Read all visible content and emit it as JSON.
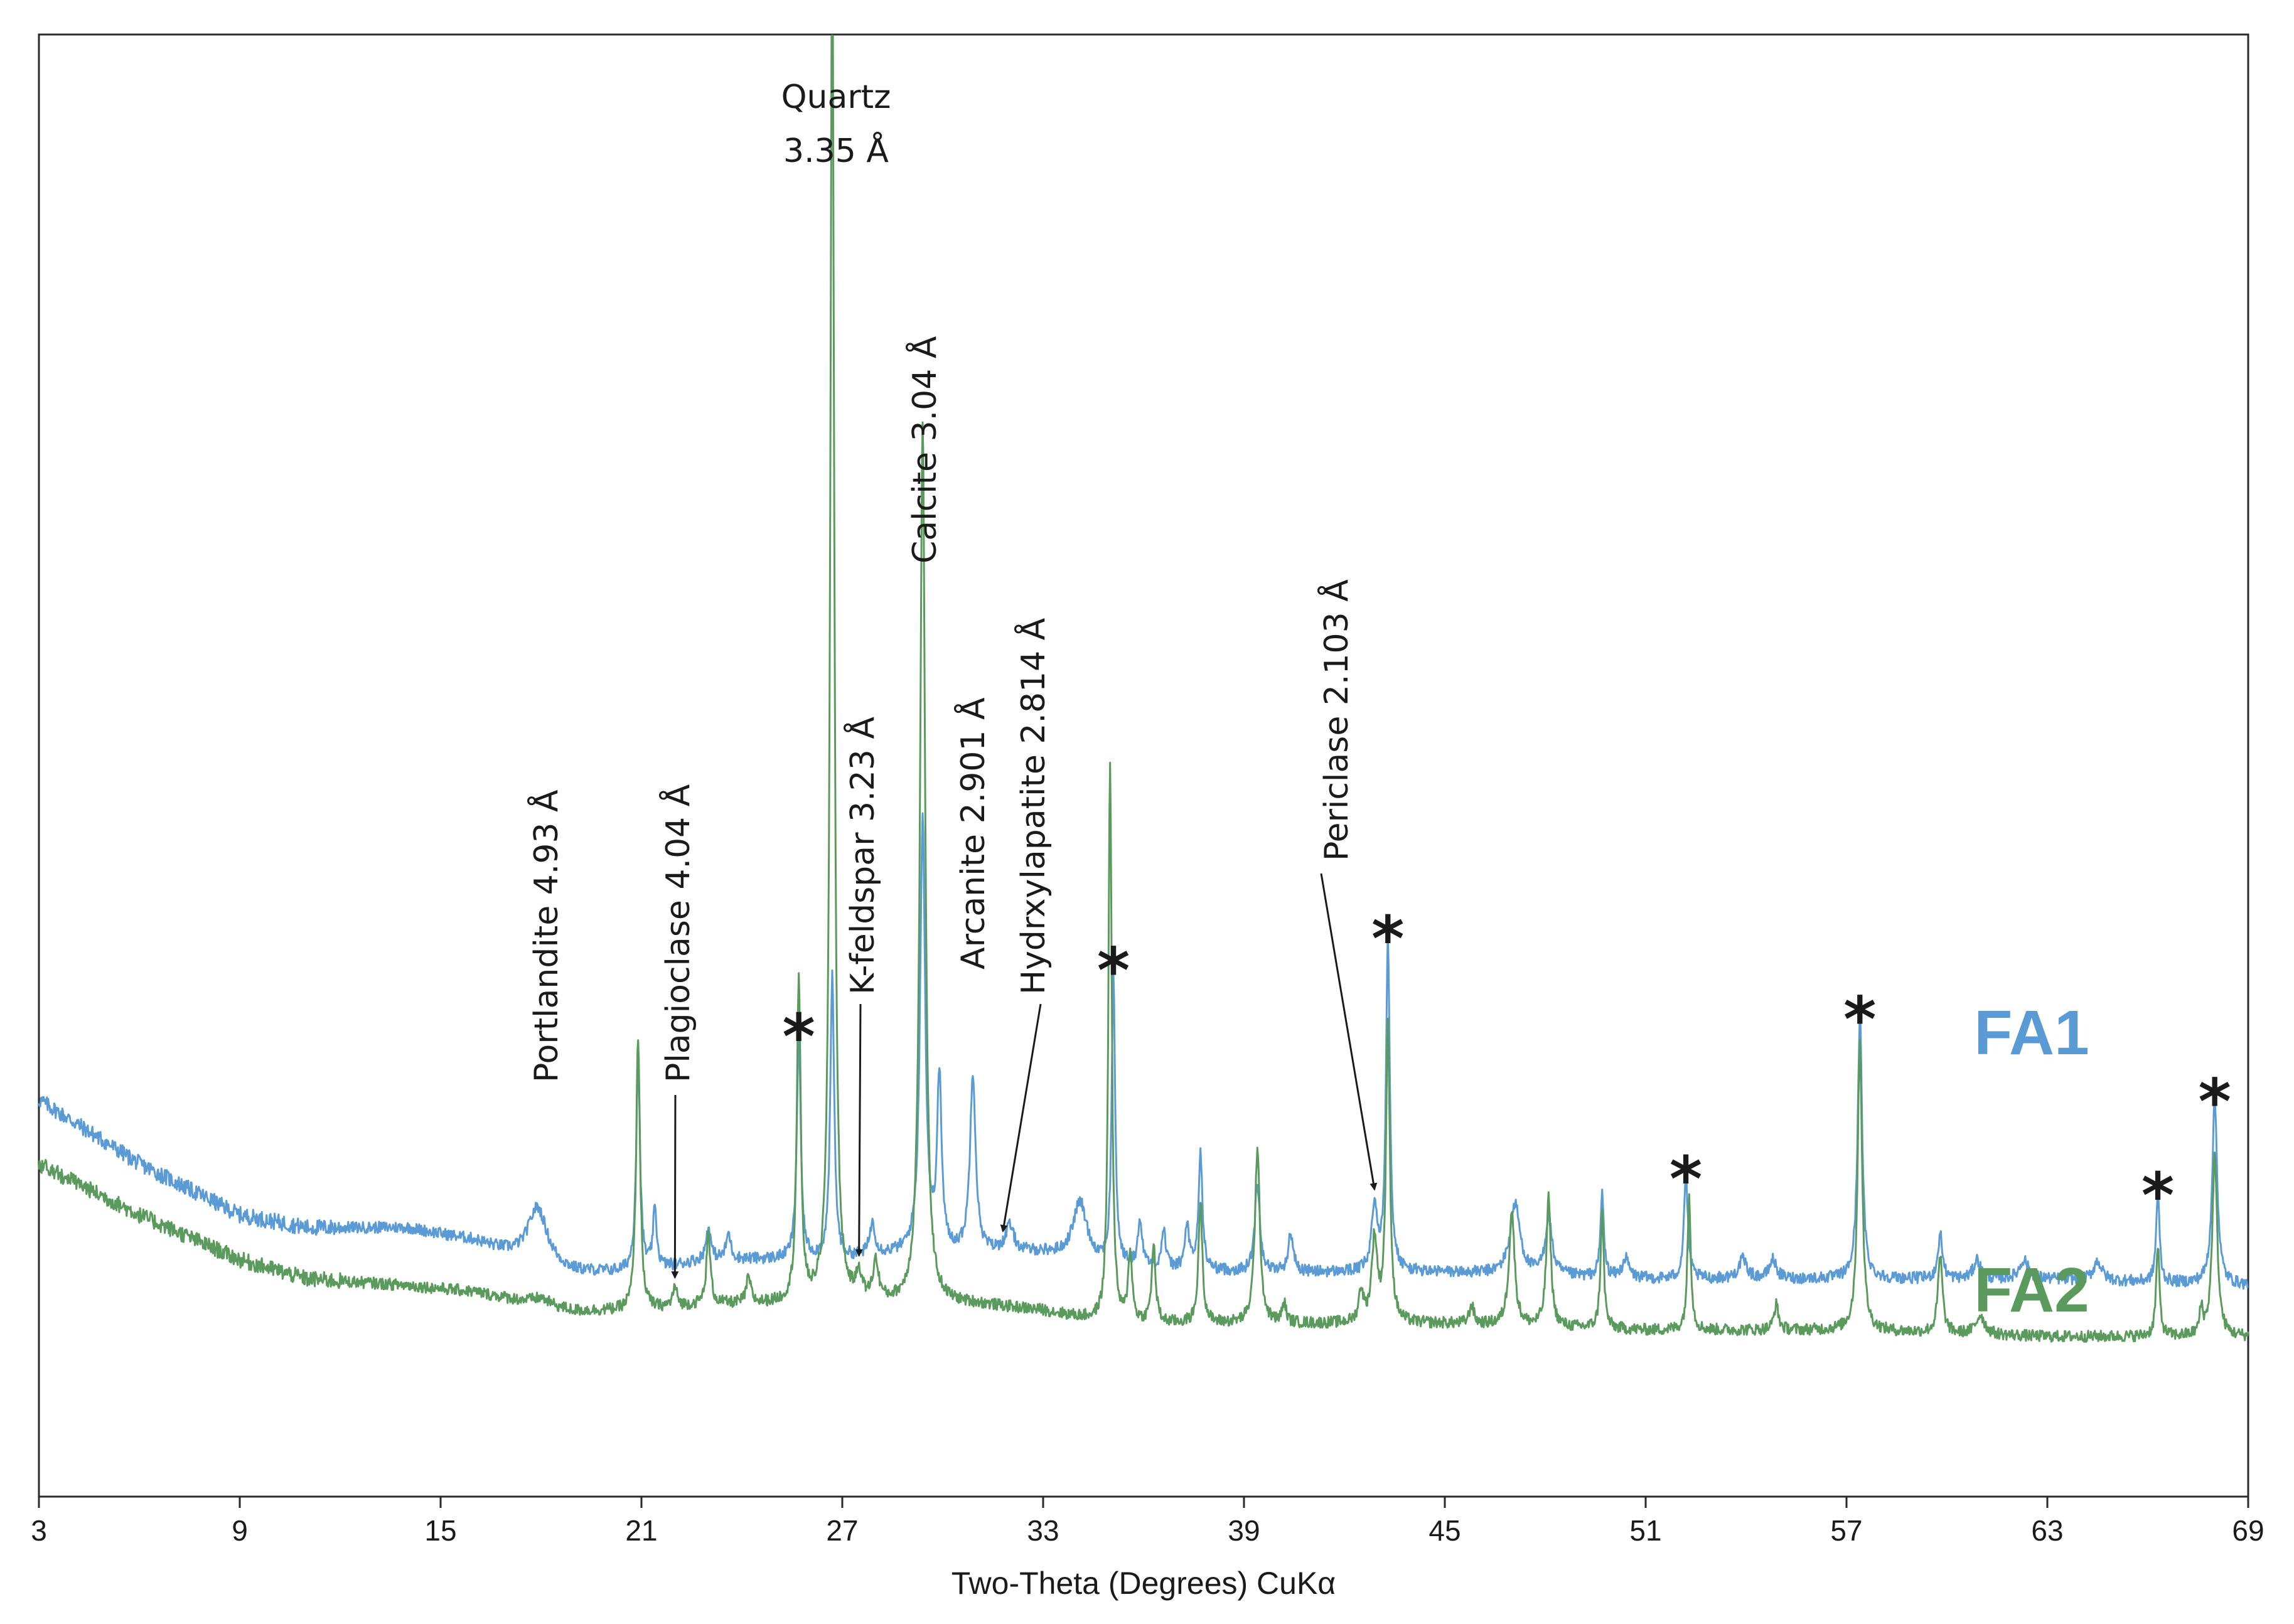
{
  "chart_data": {
    "type": "line",
    "xlabel": "Two-Theta (Degrees) CuKα",
    "xlim": [
      3,
      69
    ],
    "xticks": [
      3,
      9,
      15,
      21,
      27,
      33,
      39,
      45,
      51,
      57,
      63,
      69
    ],
    "colors": {
      "FA1": "#5b9bd5",
      "FA2": "#5a9a5c"
    },
    "series": [
      {
        "name": "FA1",
        "baseline": [
          [
            3,
            0.62
          ],
          [
            6,
            0.52
          ],
          [
            9,
            0.44
          ],
          [
            11,
            0.42
          ],
          [
            14,
            0.42
          ],
          [
            16,
            0.4
          ],
          [
            18,
            0.36
          ],
          [
            19,
            0.35
          ],
          [
            21,
            0.35
          ],
          [
            23,
            0.37
          ],
          [
            27,
            0.37
          ],
          [
            29,
            0.38
          ],
          [
            31,
            0.38
          ],
          [
            33,
            0.38
          ],
          [
            35,
            0.36
          ],
          [
            39,
            0.35
          ],
          [
            45,
            0.35
          ],
          [
            51,
            0.34
          ],
          [
            57,
            0.34
          ],
          [
            63,
            0.34
          ],
          [
            69,
            0.33
          ]
        ],
        "peaks": [
          [
            17.9,
            0.09,
            0.35
          ],
          [
            20.9,
            0.33,
            0.07
          ],
          [
            21.4,
            0.09,
            0.07
          ],
          [
            23.0,
            0.05,
            0.08
          ],
          [
            23.6,
            0.04,
            0.08
          ],
          [
            25.7,
            0.35,
            0.07
          ],
          [
            26.7,
            0.44,
            0.07
          ],
          [
            27.9,
            0.05,
            0.1
          ],
          [
            29.4,
            0.68,
            0.09
          ],
          [
            29.9,
            0.27,
            0.08
          ],
          [
            30.9,
            0.28,
            0.1
          ],
          [
            32.0,
            0.04,
            0.15
          ],
          [
            34.1,
            0.09,
            0.25
          ],
          [
            35.1,
            0.46,
            0.06
          ],
          [
            35.9,
            0.07,
            0.08
          ],
          [
            36.6,
            0.06,
            0.07
          ],
          [
            37.3,
            0.07,
            0.07
          ],
          [
            37.7,
            0.18,
            0.07
          ],
          [
            39.4,
            0.14,
            0.09
          ],
          [
            40.4,
            0.06,
            0.09
          ],
          [
            42.9,
            0.1,
            0.1
          ],
          [
            43.3,
            0.52,
            0.07
          ],
          [
            47.1,
            0.11,
            0.18
          ],
          [
            48.1,
            0.09,
            0.12
          ],
          [
            49.7,
            0.13,
            0.06
          ],
          [
            50.4,
            0.03,
            0.12
          ],
          [
            52.2,
            0.16,
            0.07
          ],
          [
            53.9,
            0.03,
            0.15
          ],
          [
            54.8,
            0.03,
            0.12
          ],
          [
            57.4,
            0.41,
            0.08
          ],
          [
            59.8,
            0.07,
            0.08
          ],
          [
            60.9,
            0.03,
            0.12
          ],
          [
            62.3,
            0.03,
            0.15
          ],
          [
            64.5,
            0.03,
            0.15
          ],
          [
            66.3,
            0.14,
            0.06
          ],
          [
            68.0,
            0.29,
            0.09
          ]
        ]
      },
      {
        "name": "FA2",
        "baseline": [
          [
            3,
            0.52
          ],
          [
            6,
            0.44
          ],
          [
            9,
            0.37
          ],
          [
            11,
            0.34
          ],
          [
            14,
            0.33
          ],
          [
            16,
            0.32
          ],
          [
            19,
            0.29
          ],
          [
            21,
            0.29
          ],
          [
            23,
            0.3
          ],
          [
            27,
            0.3
          ],
          [
            29,
            0.3
          ],
          [
            31,
            0.3
          ],
          [
            33,
            0.29
          ],
          [
            35,
            0.27
          ],
          [
            39,
            0.27
          ],
          [
            45,
            0.27
          ],
          [
            51,
            0.26
          ],
          [
            57,
            0.26
          ],
          [
            63,
            0.25
          ],
          [
            69,
            0.25
          ]
        ],
        "peaks": [
          [
            18.0,
            0.01,
            0.3
          ],
          [
            20.9,
            0.43,
            0.07
          ],
          [
            22.0,
            0.03,
            0.08
          ],
          [
            23.0,
            0.11,
            0.07
          ],
          [
            24.2,
            0.04,
            0.08
          ],
          [
            25.7,
            0.5,
            0.07
          ],
          [
            26.7,
            2.15,
            0.07
          ],
          [
            27.5,
            0.04,
            0.1
          ],
          [
            28.0,
            0.06,
            0.1
          ],
          [
            29.4,
            1.38,
            0.09
          ],
          [
            35.0,
            0.88,
            0.06
          ],
          [
            35.6,
            0.11,
            0.07
          ],
          [
            36.3,
            0.12,
            0.07
          ],
          [
            37.7,
            0.19,
            0.07
          ],
          [
            39.4,
            0.27,
            0.09
          ],
          [
            40.2,
            0.03,
            0.07
          ],
          [
            42.5,
            0.05,
            0.08
          ],
          [
            42.9,
            0.13,
            0.1
          ],
          [
            43.3,
            0.46,
            0.07
          ],
          [
            45.8,
            0.03,
            0.08
          ],
          [
            47.0,
            0.18,
            0.1
          ],
          [
            48.1,
            0.2,
            0.08
          ],
          [
            49.7,
            0.18,
            0.06
          ],
          [
            52.3,
            0.21,
            0.06
          ],
          [
            54.9,
            0.04,
            0.08
          ],
          [
            57.4,
            0.45,
            0.08
          ],
          [
            59.8,
            0.12,
            0.08
          ],
          [
            61.0,
            0.03,
            0.15
          ],
          [
            66.3,
            0.14,
            0.06
          ],
          [
            67.6,
            0.04,
            0.06
          ],
          [
            68.0,
            0.28,
            0.09
          ]
        ]
      }
    ],
    "annotations": [
      {
        "line1": "Quartz",
        "line2": "3.35 Å"
      },
      {
        "text": "Portlandite 4.93 Å"
      },
      {
        "text": "Plagioclase 4.04 Å",
        "x": 22.0
      },
      {
        "text": "K-feldspar 3.23 Å",
        "x": 27.5
      },
      {
        "text": "Calcite 3.04 Å"
      },
      {
        "text": "Arcanite 2.901 Å"
      },
      {
        "text": "Hydrxylapatite 2.814 Å",
        "x": 31.8
      },
      {
        "text": "Periclase 2.103 Å",
        "x": 42.9
      }
    ],
    "markers": {
      "symbol": "*",
      "x": [
        25.7,
        35.1,
        43.3,
        52.2,
        57.4,
        66.3,
        68.0
      ]
    },
    "series_labels": {
      "FA1": "FA1",
      "FA2": "FA2"
    }
  }
}
